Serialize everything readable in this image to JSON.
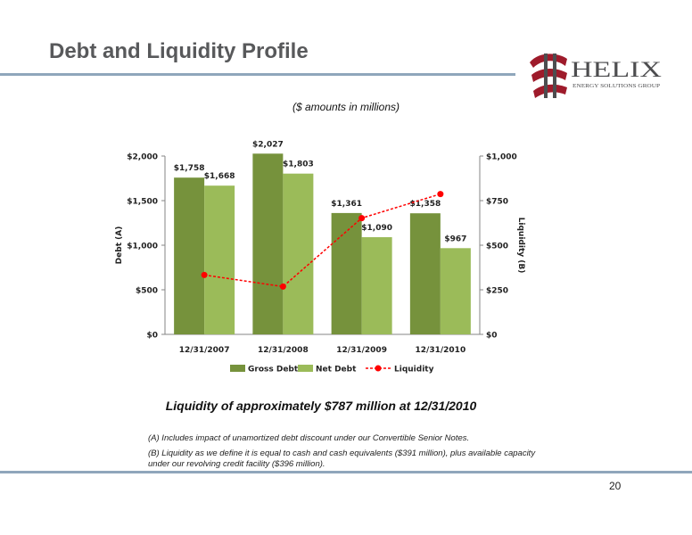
{
  "slide": {
    "title": "Debt and Liquidity Profile",
    "subtitle": "($ amounts in millions)",
    "headline": "Liquidity of approximately $787 million at 12/31/2010",
    "note_a": "(A) Includes impact of unamortized debt discount under our Convertible Senior Notes.",
    "note_b": "(B) Liquidity as we define it is equal to cash and cash equivalents ($391 million), plus available capacity under our revolving credit facility ($396 million).",
    "page_number": "20"
  },
  "logo": {
    "name": "HELIX",
    "tagline": "ENERGY SOLUTIONS GROUP",
    "colors": {
      "red": "#9e1b2b",
      "gray": "#4d4d4f"
    }
  },
  "chart_data": {
    "type": "bar",
    "categories": [
      "12/31/2007",
      "12/31/2008",
      "12/31/2009",
      "12/31/2010"
    ],
    "series": [
      {
        "name": "Gross Debt",
        "values": [
          1758,
          2027,
          1361,
          1358
        ],
        "labels": [
          "$1,758",
          "$2,027",
          "$1,361",
          "$1,358"
        ],
        "color": "#76923c",
        "axis": "left"
      },
      {
        "name": "Net Debt",
        "values": [
          1668,
          1803,
          1090,
          967
        ],
        "labels": [
          "$1,668",
          "$1,803",
          "$1,090",
          "$967"
        ],
        "color": "#9bbb59",
        "axis": "left"
      },
      {
        "name": "Liquidity",
        "type": "line",
        "values": [
          333,
          268,
          652,
          787
        ],
        "color": "#ff0000",
        "axis": "right"
      }
    ],
    "y_left": {
      "label": "Debt (A)",
      "min": 0,
      "max": 2000,
      "ticks": [
        0,
        500,
        1000,
        1500,
        2000
      ],
      "tick_labels": [
        "$0",
        "$500",
        "$1,000",
        "$1,500",
        "$2,000"
      ]
    },
    "y_right": {
      "label": "Liquidity (B)",
      "min": 0,
      "max": 1000,
      "ticks": [
        0,
        250,
        500,
        750,
        1000
      ],
      "tick_labels": [
        "$0",
        "$250",
        "$500",
        "$750",
        "$1,000"
      ]
    },
    "grid": false,
    "legend": "bottom"
  }
}
